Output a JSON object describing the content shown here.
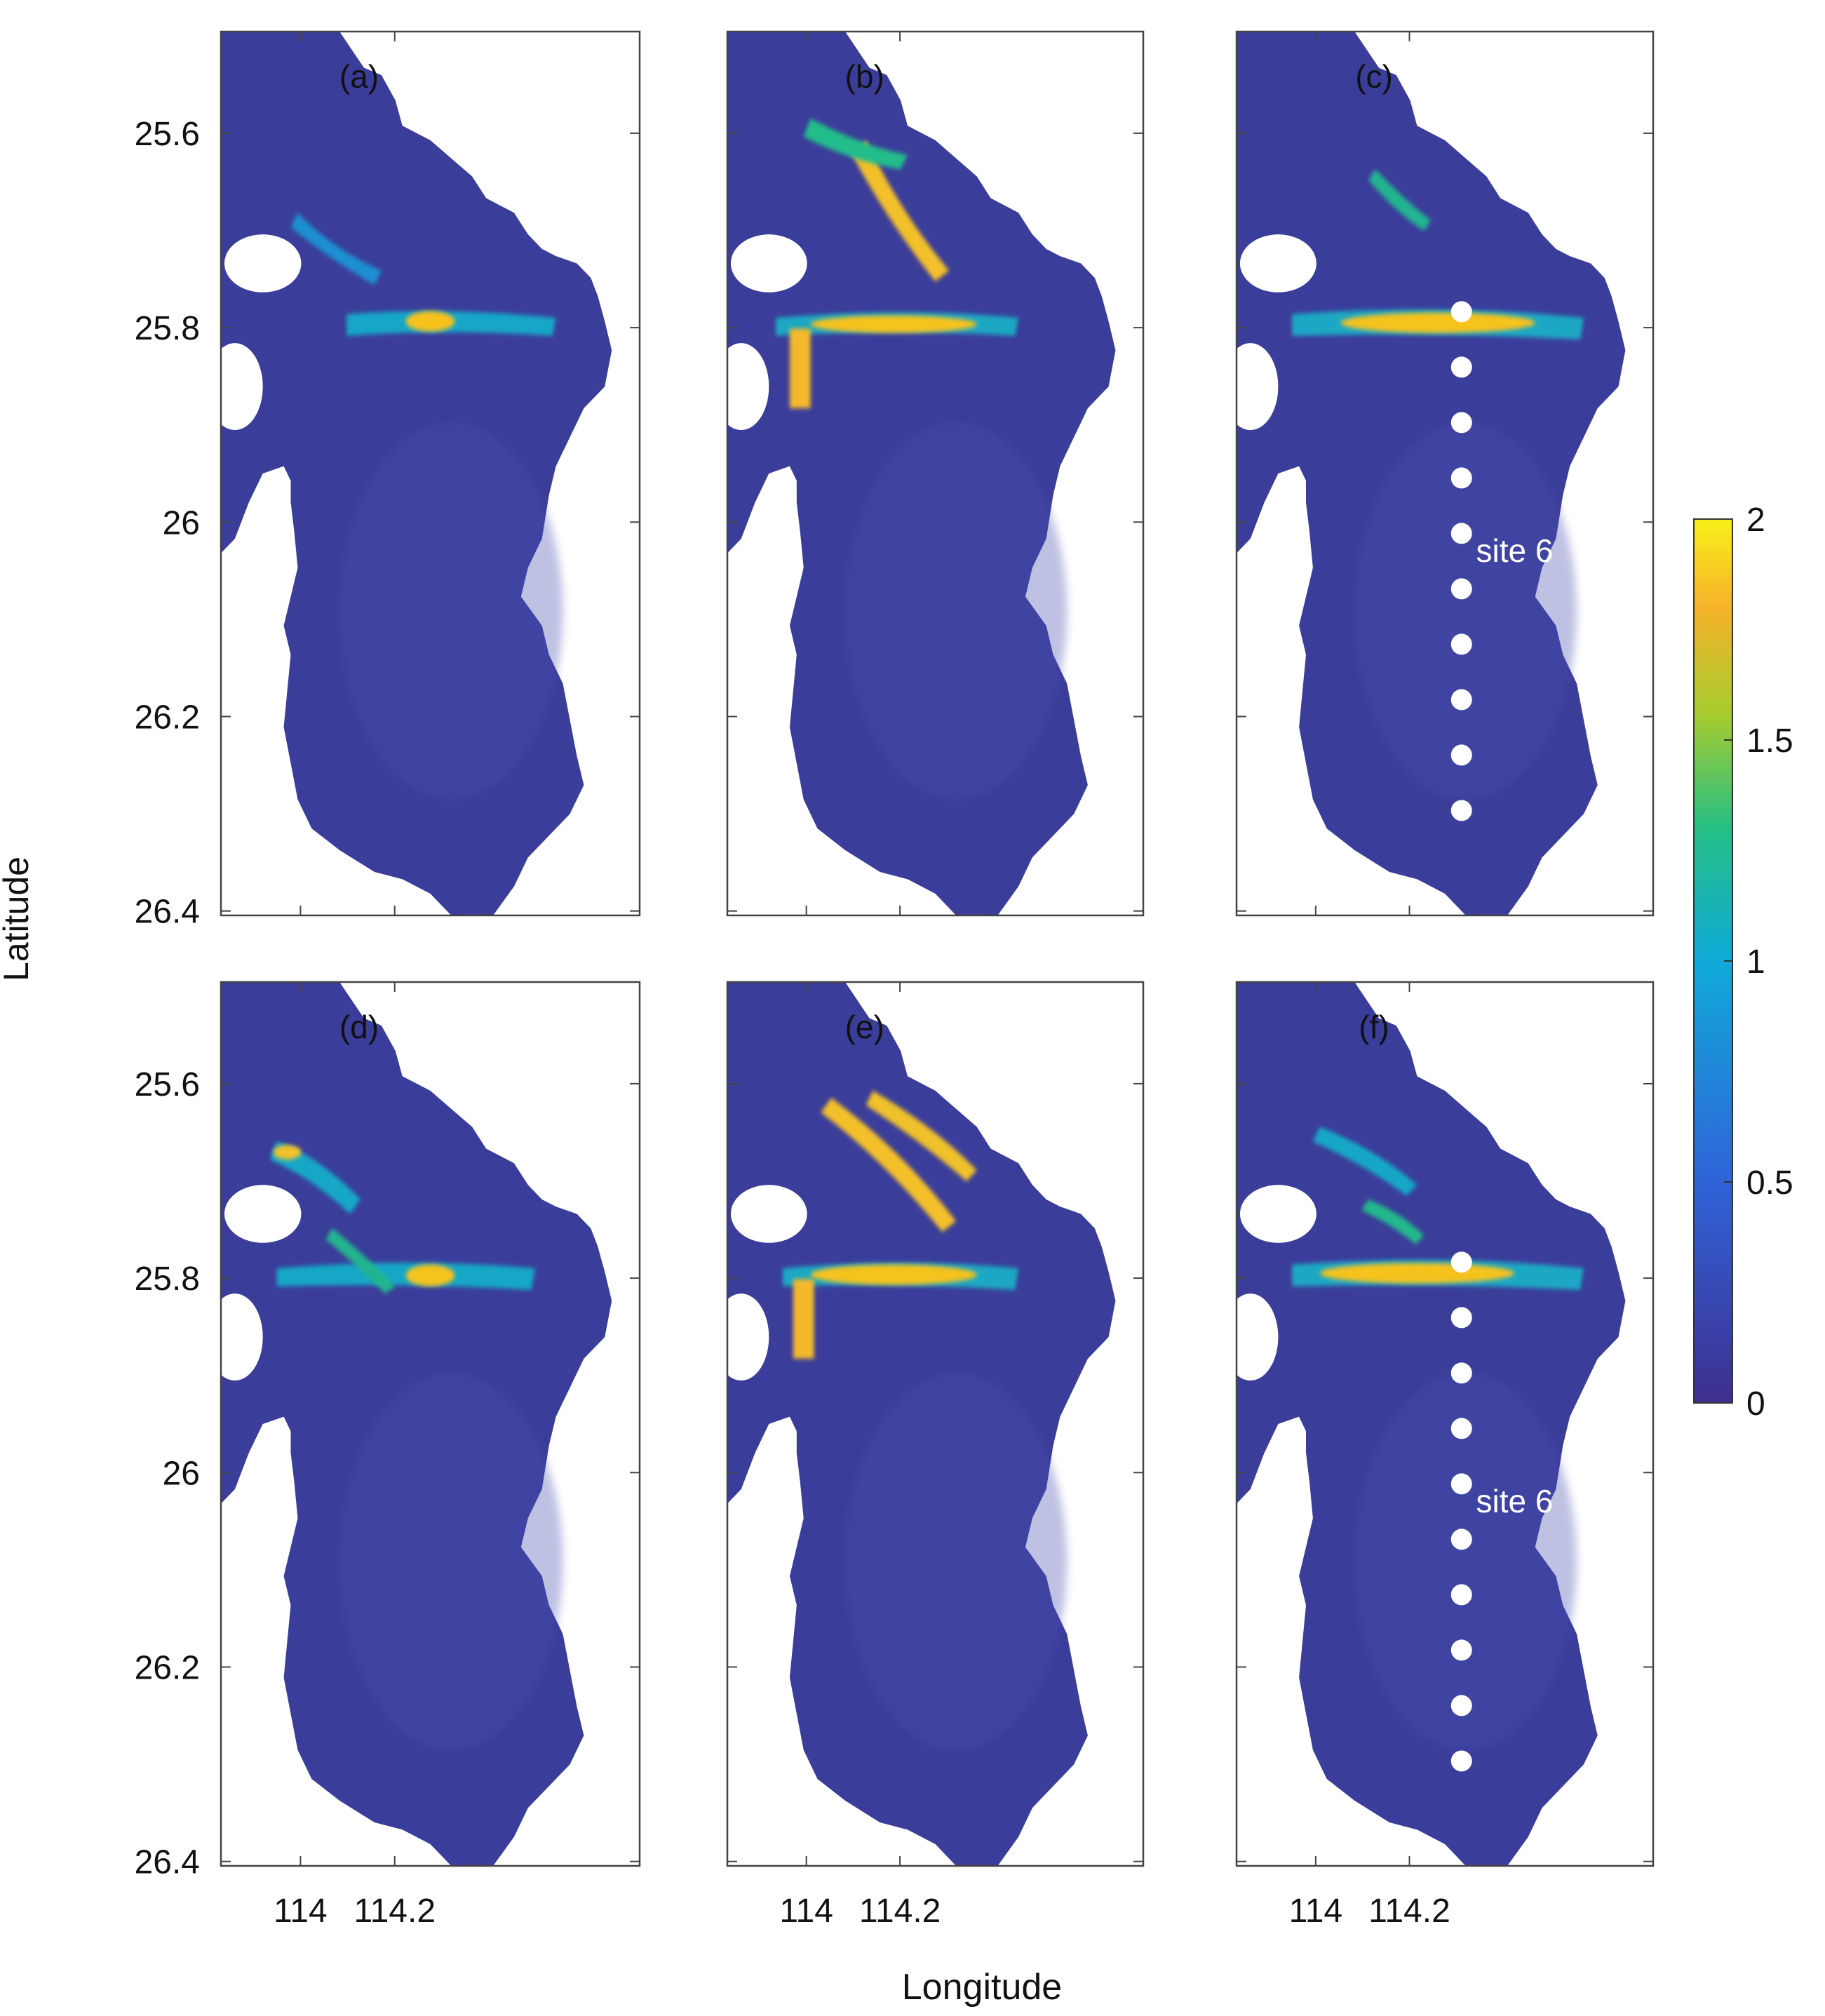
{
  "figure": {
    "ylabel": "Latitude",
    "xlabel": "Longitude",
    "lat_ticks": [
      "25.6",
      "25.8",
      "26",
      "26.2",
      "26.4"
    ],
    "lon_ticks": [
      "114",
      "114.2"
    ],
    "colorbar": {
      "ticks": [
        "2",
        "1.5",
        "1",
        "0.5",
        "0"
      ],
      "range": [
        0,
        2
      ],
      "colors": [
        "#3e2f8f",
        "#2a6fd6",
        "#0fa7d8",
        "#22bf8a",
        "#a8cf2c",
        "#f3a62b",
        "#f7eb1c"
      ]
    },
    "colors": {
      "water_base": "#3b3d9a",
      "water_light": "#4a4fb0",
      "hotspot_core": "#f6c21d",
      "site_marker": "#ffffff"
    },
    "panels": [
      {
        "label": "(a)",
        "sites": false,
        "site_label": ""
      },
      {
        "label": "(b)",
        "sites": false,
        "site_label": ""
      },
      {
        "label": "(c)",
        "sites": true,
        "site_label": "site 6"
      },
      {
        "label": "(d)",
        "sites": false,
        "site_label": ""
      },
      {
        "label": "(e)",
        "sites": false,
        "site_label": ""
      },
      {
        "label": "(f)",
        "sites": true,
        "site_label": "site 6"
      }
    ]
  }
}
